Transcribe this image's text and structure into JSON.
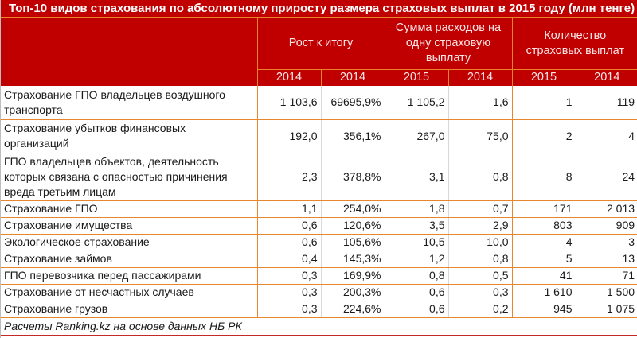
{
  "title": "Топ-10 видов страхования по абсолютному приросту размера страховых выплат в 2015 году (млн тенге)",
  "colors": {
    "header_bg": "#c00000",
    "border": "#e8862e",
    "footer_line": "#c62828"
  },
  "header": {
    "groups": [
      {
        "label": "Рост к итогу",
        "span": 2
      },
      {
        "label": "Сумма расходов на одну страховую выплату",
        "span": 2
      },
      {
        "label": "Количество страховых выплат",
        "span": 2
      }
    ],
    "years": [
      "2014",
      "2014",
      "2015",
      "2014",
      "2015",
      "2014"
    ]
  },
  "rows": [
    {
      "label": "Страхование ГПО владельцев воздушного транспорта",
      "values": [
        "1 103,6",
        "69695,9%",
        "1 105,2",
        "1,6",
        "1",
        "119"
      ]
    },
    {
      "label": "Страхование убытков финансовых организаций",
      "values": [
        "192,0",
        "356,1%",
        "267,0",
        "75,0",
        "2",
        "4"
      ]
    },
    {
      "label": "ГПО владельцев объектов, деятельность которых связана с опасностью причинения вреда третьим лицам",
      "values": [
        "2,3",
        "378,8%",
        "3,1",
        "0,8",
        "8",
        "24"
      ]
    },
    {
      "label": "Страхование ГПО",
      "values": [
        "1,1",
        "254,0%",
        "1,8",
        "0,7",
        "171",
        "2 013"
      ]
    },
    {
      "label": "Страхование имущества",
      "values": [
        "0,6",
        "120,6%",
        "3,5",
        "2,9",
        "803",
        "909"
      ]
    },
    {
      "label": "Экологическое страхование",
      "values": [
        "0,6",
        "105,6%",
        "10,5",
        "10,0",
        "4",
        "3"
      ]
    },
    {
      "label": "Страхование займов",
      "values": [
        "0,4",
        "145,3%",
        "1,2",
        "0,8",
        "5",
        "13"
      ]
    },
    {
      "label": "ГПО перевозчика перед пассажирами",
      "values": [
        "0,3",
        "169,9%",
        "0,8",
        "0,5",
        "41",
        "71"
      ]
    },
    {
      "label": "Страхование от несчастных случаев",
      "values": [
        "0,3",
        "200,3%",
        "0,6",
        "0,3",
        "1 610",
        "1 500"
      ]
    },
    {
      "label": "Страхование грузов",
      "values": [
        "0,3",
        "224,6%",
        "0,6",
        "0,2",
        "945",
        "1 075"
      ]
    }
  ],
  "footer": "Расчеты Ranking.kz на основе данных НБ РК"
}
